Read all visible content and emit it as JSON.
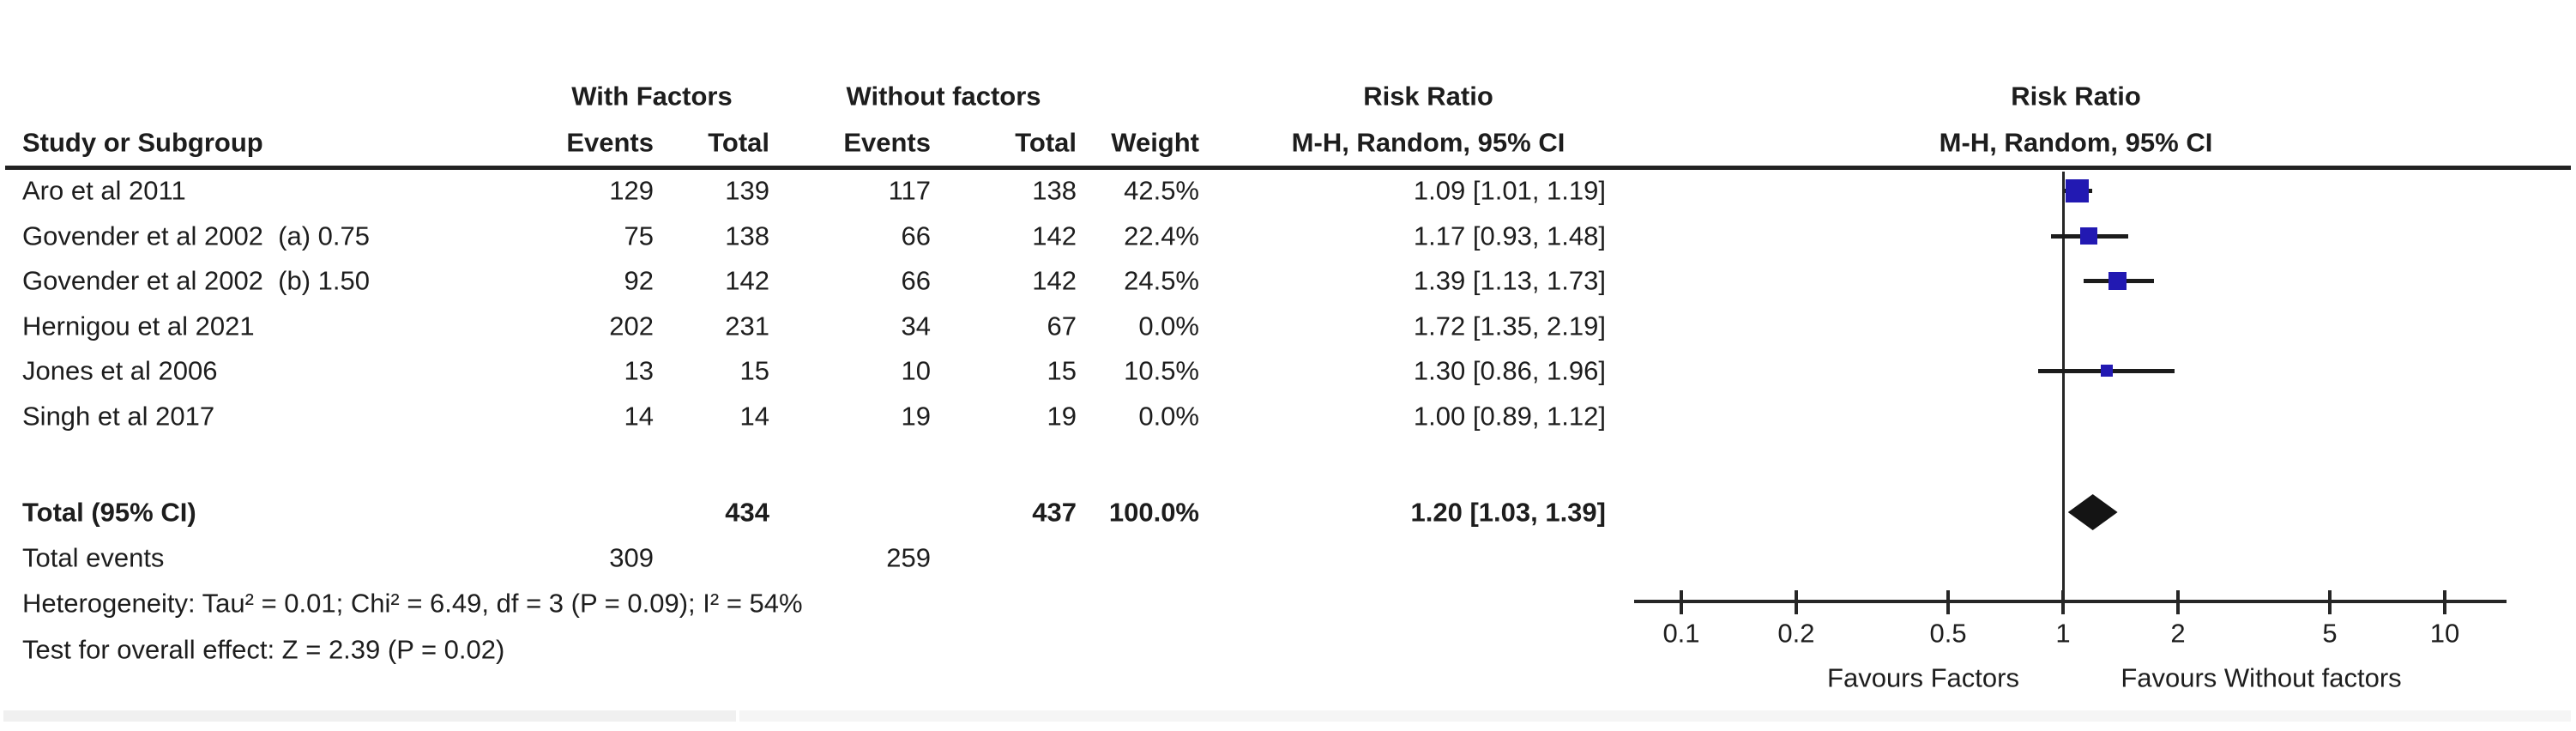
{
  "table": {
    "group_with": "With Factors",
    "group_without": "Without factors",
    "headers": {
      "study": "Study or Subgroup",
      "events": "Events",
      "total": "Total",
      "weight": "Weight",
      "risk_ratio_line1": "Risk Ratio",
      "risk_ratio_line2": "M-H, Random, 95% CI"
    },
    "studies": [
      {
        "name": "Aro et al 2011",
        "events_with": "129",
        "total_with": "139",
        "events_without": "117",
        "total_without": "138",
        "weight": "42.5%",
        "rr_ci": "1.09 [1.01, 1.19]"
      },
      {
        "name": "Govender et al 2002  (a) 0.75",
        "events_with": "75",
        "total_with": "138",
        "events_without": "66",
        "total_without": "142",
        "weight": "22.4%",
        "rr_ci": "1.17 [0.93, 1.48]"
      },
      {
        "name": "Govender et al 2002  (b) 1.50",
        "events_with": "92",
        "total_with": "142",
        "events_without": "66",
        "total_without": "142",
        "weight": "24.5%",
        "rr_ci": "1.39 [1.13, 1.73]"
      },
      {
        "name": "Hernigou et al 2021",
        "events_with": "202",
        "total_with": "231",
        "events_without": "34",
        "total_without": "67",
        "weight": "0.0%",
        "rr_ci": "1.72 [1.35, 2.19]"
      },
      {
        "name": "Jones et al 2006",
        "events_with": "13",
        "total_with": "15",
        "events_without": "10",
        "total_without": "15",
        "weight": "10.5%",
        "rr_ci": "1.30 [0.86, 1.96]"
      },
      {
        "name": "Singh et al 2017",
        "events_with": "14",
        "total_with": "14",
        "events_without": "19",
        "total_without": "19",
        "weight": "0.0%",
        "rr_ci": "1.00 [0.89, 1.12]"
      }
    ],
    "total_row": {
      "label": "Total (95% CI)",
      "total_with": "434",
      "total_without": "437",
      "weight": "100.0%",
      "rr_ci": "1.20 [1.03, 1.39]"
    },
    "total_events_row": {
      "label": "Total events",
      "events_with": "309",
      "events_without": "259"
    }
  },
  "footnotes": {
    "heterogeneity": "Heterogeneity: Tau² = 0.01; Chi² = 6.49, df = 3 (P = 0.09); I² = 54%",
    "overall_effect": "Test for overall effect: Z = 2.39 (P = 0.02)"
  },
  "chart_data": {
    "type": "forest",
    "effect_measure": "Risk Ratio",
    "model": "M-H, Random, 95% CI",
    "x_scale": "log10",
    "x_range": [
      0.1,
      10
    ],
    "null_value": 1,
    "x_tick_labels": [
      "0.1",
      "0.2",
      "0.5",
      "1",
      "2",
      "5",
      "10"
    ],
    "favours_left": "Favours Factors",
    "favours_right": "Favours Without factors",
    "studies": [
      {
        "name": "Aro et al 2011",
        "rr": 1.09,
        "ci_low": 1.01,
        "ci_high": 1.19,
        "weight_pct": 42.5,
        "plotted": true
      },
      {
        "name": "Govender et al 2002 (a) 0.75",
        "rr": 1.17,
        "ci_low": 0.93,
        "ci_high": 1.48,
        "weight_pct": 22.4,
        "plotted": true
      },
      {
        "name": "Govender et al 2002 (b) 1.50",
        "rr": 1.39,
        "ci_low": 1.13,
        "ci_high": 1.73,
        "weight_pct": 24.5,
        "plotted": true
      },
      {
        "name": "Hernigou et al 2021",
        "rr": 1.72,
        "ci_low": 1.35,
        "ci_high": 2.19,
        "weight_pct": 0.0,
        "plotted": false
      },
      {
        "name": "Jones et al 2006",
        "rr": 1.3,
        "ci_low": 0.86,
        "ci_high": 1.96,
        "weight_pct": 10.5,
        "plotted": true
      },
      {
        "name": "Singh et al 2017",
        "rr": 1.0,
        "ci_low": 0.89,
        "ci_high": 1.12,
        "weight_pct": 0.0,
        "plotted": false
      }
    ],
    "total": {
      "label": "Total (95% CI)",
      "rr": 1.2,
      "ci_low": 1.03,
      "ci_high": 1.39,
      "weight_pct": 100.0
    }
  },
  "colors": {
    "marker_blue": "#2219b2",
    "diamond": "#141414",
    "line": "#1c1c1c",
    "axis": "#262626",
    "text": "#1d1d1d",
    "bottom_band_left": "#f0f0f0",
    "bottom_band_right": "#f5f5f5"
  }
}
